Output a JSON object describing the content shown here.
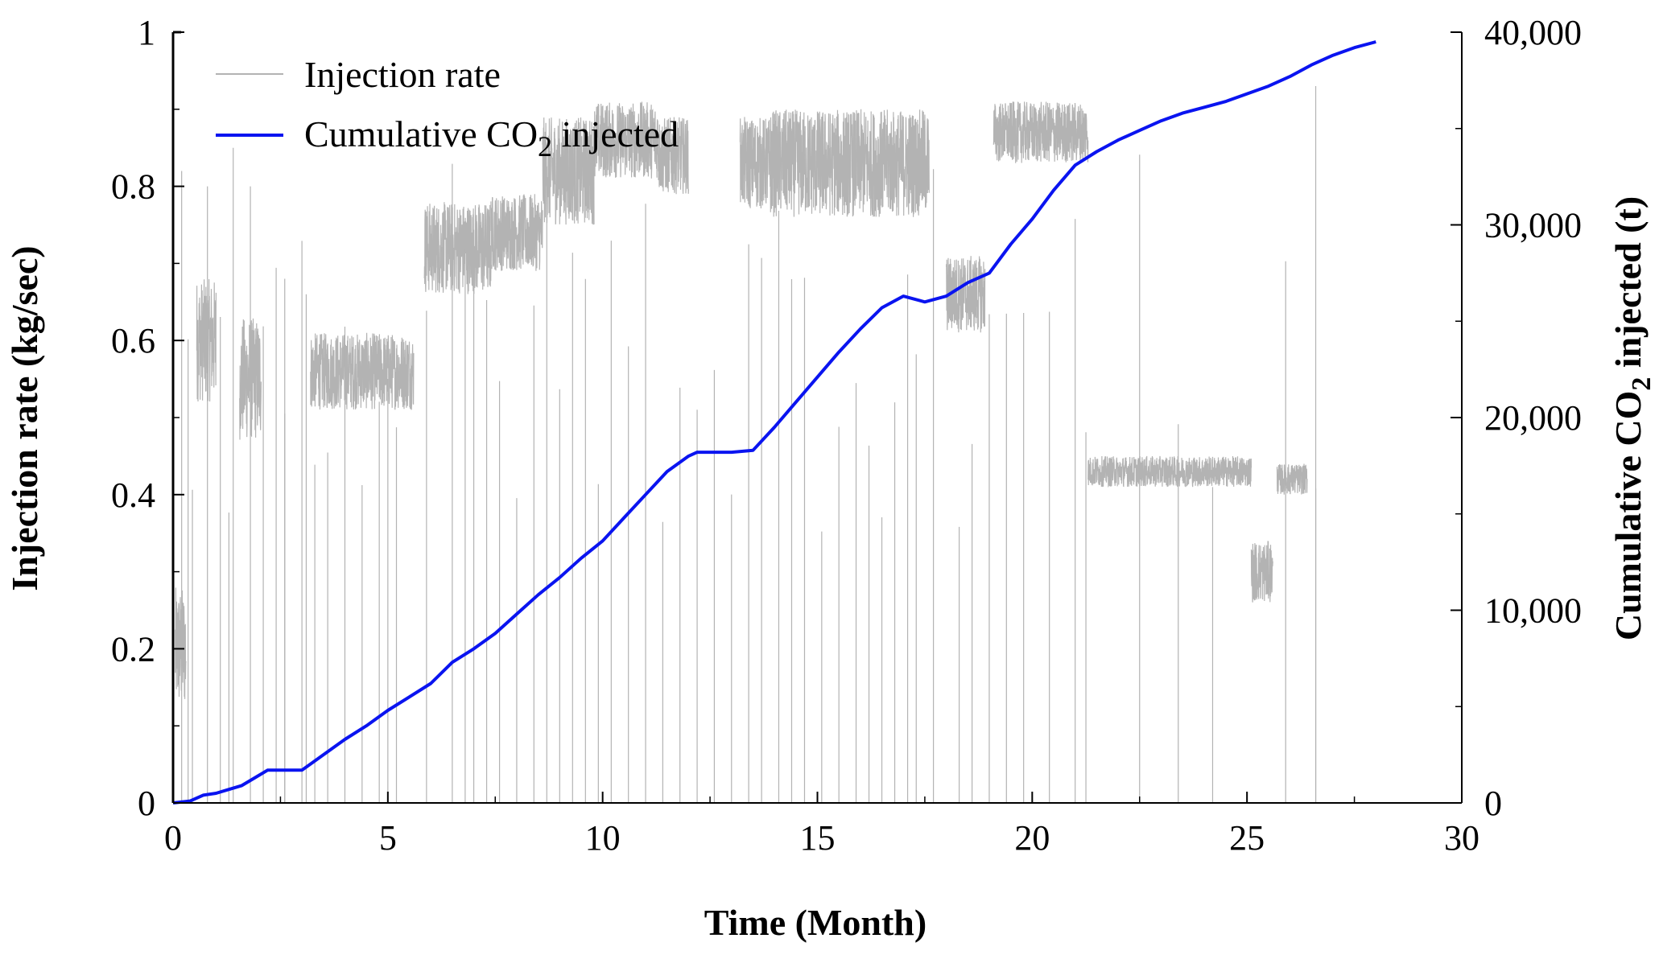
{
  "chart_data": {
    "type": "line",
    "title": "",
    "xlabel": "Time (Month)",
    "ylabel_left": "Injection rate (kg/sec)",
    "ylabel_right_parts": {
      "main": "Cumulative CO",
      "sub": "2",
      "tail": " injected (t)"
    },
    "xlim": [
      0,
      30
    ],
    "ylim_left": [
      0,
      1
    ],
    "ylim_right": [
      0,
      40000
    ],
    "x_ticks": [
      0,
      5,
      10,
      15,
      20,
      25,
      30
    ],
    "x_tick_labels": [
      "0",
      "5",
      "10",
      "15",
      "20",
      "25",
      "30"
    ],
    "y_left_ticks": [
      0,
      0.2,
      0.4,
      0.6,
      0.8,
      1
    ],
    "y_left_tick_labels": [
      "0",
      "0.2",
      "0.4",
      "0.6",
      "0.8",
      "1"
    ],
    "y_right_ticks": [
      0,
      10000,
      20000,
      30000,
      40000
    ],
    "y_right_tick_labels": [
      "0",
      "10,000",
      "20,000",
      "30,000",
      "40,000"
    ],
    "grid": false,
    "legend_position": "top-left",
    "legend": {
      "rate_label": "Injection rate",
      "cum_label_main": "Cumulative CO",
      "cum_label_sub": "2",
      "cum_label_tail": " injected"
    },
    "colors": {
      "rate": "#b3b3b3",
      "cumulative": "#0a14f0",
      "axis": "#000000"
    },
    "series": [
      {
        "name": "Injection rate",
        "axis": "left",
        "segments": [
          {
            "x": [
              0.05,
              0.3
            ],
            "base": 0.2,
            "noise": 0.08
          },
          {
            "x": [
              0.55,
              1.0
            ],
            "base": 0.6,
            "noise": 0.08
          },
          {
            "x": [
              1.55,
              2.05
            ],
            "base": 0.55,
            "noise": 0.08
          },
          {
            "x": [
              3.2,
              5.6
            ],
            "base": 0.56,
            "noise": 0.05
          },
          {
            "x": [
              5.85,
              7.4
            ],
            "base": 0.72,
            "noise": 0.06
          },
          {
            "x": [
              7.4,
              8.6
            ],
            "base": 0.74,
            "noise": 0.05
          },
          {
            "x": [
              8.6,
              9.8
            ],
            "base": 0.82,
            "noise": 0.07
          },
          {
            "x": [
              9.8,
              11.3
            ],
            "base": 0.86,
            "noise": 0.05
          },
          {
            "x": [
              11.3,
              12.0
            ],
            "base": 0.84,
            "noise": 0.05
          },
          {
            "x": [
              13.2,
              13.9
            ],
            "base": 0.83,
            "noise": 0.06
          },
          {
            "x": [
              13.9,
              17.6
            ],
            "base": 0.83,
            "noise": 0.07
          },
          {
            "x": [
              18.0,
              18.9
            ],
            "base": 0.66,
            "noise": 0.05
          },
          {
            "x": [
              19.1,
              21.3
            ],
            "base": 0.87,
            "noise": 0.04
          },
          {
            "x": [
              21.3,
              23.6
            ],
            "base": 0.43,
            "noise": 0.02
          },
          {
            "x": [
              23.6,
              25.1
            ],
            "base": 0.43,
            "noise": 0.02
          },
          {
            "x": [
              25.1,
              25.6
            ],
            "base": 0.3,
            "noise": 0.04
          },
          {
            "x": [
              25.7,
              26.4
            ],
            "base": 0.42,
            "noise": 0.02
          }
        ],
        "spikes": [
          {
            "x": 0.2,
            "y": 0.82
          },
          {
            "x": 0.8,
            "y": 0.8
          },
          {
            "x": 1.4,
            "y": 0.85
          },
          {
            "x": 1.8,
            "y": 0.8
          },
          {
            "x": 2.6,
            "y": 0.68
          },
          {
            "x": 3.1,
            "y": 0.66
          },
          {
            "x": 26.6,
            "y": 0.93
          }
        ],
        "dropouts": [
          0.35,
          0.45,
          1.1,
          1.3,
          2.1,
          2.4,
          2.6,
          3.0,
          3.3,
          3.6,
          4.0,
          4.4,
          4.8,
          5.0,
          5.2,
          5.9,
          6.5,
          6.8,
          7.0,
          7.3,
          7.6,
          8.0,
          8.4,
          8.7,
          9.0,
          9.3,
          9.6,
          9.9,
          10.2,
          10.6,
          11.0,
          11.4,
          11.8,
          12.2,
          12.6,
          13.0,
          13.4,
          13.7,
          14.1,
          14.4,
          14.7,
          15.1,
          15.5,
          15.9,
          16.2,
          16.5,
          16.8,
          17.1,
          17.3,
          17.7,
          18.3,
          18.6,
          19.0,
          19.4,
          19.8,
          20.4,
          21.0,
          21.25,
          22.5,
          23.4,
          24.2,
          25.9,
          26.6
        ],
        "mean_rate": 0.55
      },
      {
        "name": "Cumulative CO2 injected",
        "axis": "right",
        "x": [
          0,
          0.4,
          0.7,
          1.0,
          1.3,
          1.6,
          1.9,
          2.2,
          2.5,
          3.0,
          3.5,
          4.0,
          4.5,
          5.0,
          5.5,
          6.0,
          6.5,
          7.0,
          7.5,
          8.0,
          8.5,
          9.0,
          9.5,
          10.0,
          10.5,
          11.0,
          11.5,
          12.0,
          12.2,
          12.5,
          13.0,
          13.5,
          14.0,
          14.5,
          15.0,
          15.5,
          16.0,
          16.5,
          17.0,
          17.5,
          18.0,
          18.5,
          19.0,
          19.5,
          20.0,
          20.5,
          21.0,
          21.5,
          22.0,
          22.5,
          23.0,
          23.5,
          24.0,
          24.5,
          25.0,
          25.5,
          26.0,
          26.5,
          27.0,
          27.5,
          28.0
        ],
        "y": [
          0,
          100,
          400,
          500,
          700,
          900,
          1300,
          1700,
          1700,
          1700,
          2500,
          3300,
          4000,
          4800,
          5500,
          6200,
          7300,
          8000,
          8800,
          9800,
          10800,
          11700,
          12700,
          13600,
          14800,
          16000,
          17200,
          18000,
          18200,
          18200,
          18200,
          18300,
          19500,
          20800,
          22100,
          23400,
          24600,
          25700,
          26300,
          26000,
          26300,
          27000,
          27500,
          29000,
          30300,
          31800,
          33100,
          33800,
          34400,
          34900,
          35400,
          35800,
          36100,
          36400,
          36800,
          37200,
          37700,
          38300,
          38800,
          39200,
          39500
        ]
      }
    ]
  }
}
